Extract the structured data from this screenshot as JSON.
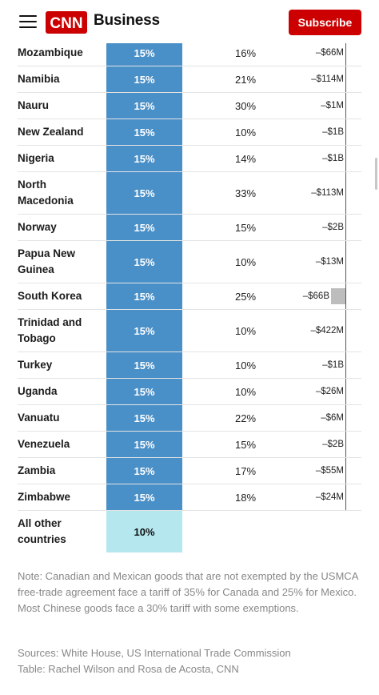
{
  "header": {
    "logo_text": "CNN",
    "section": "Business",
    "subscribe_label": "Subscribe",
    "colors": {
      "brand_red": "#cc0000",
      "rate_bar": "#4a90c8",
      "rate_other": "#b5e7ef"
    }
  },
  "table": {
    "rows": [
      {
        "country": "Mozambique",
        "rate": "15%",
        "prev": "16%",
        "trade": "–$66M"
      },
      {
        "country": "Namibia",
        "rate": "15%",
        "prev": "21%",
        "trade": "–$114M"
      },
      {
        "country": "Nauru",
        "rate": "15%",
        "prev": "30%",
        "trade": "–$1M"
      },
      {
        "country": "New Zealand",
        "rate": "15%",
        "prev": "10%",
        "trade": "–$1B"
      },
      {
        "country": "Nigeria",
        "rate": "15%",
        "prev": "14%",
        "trade": "–$1B"
      },
      {
        "country": "North Macedonia",
        "rate": "15%",
        "prev": "33%",
        "trade": "–$113M"
      },
      {
        "country": "Norway",
        "rate": "15%",
        "prev": "15%",
        "trade": "–$2B"
      },
      {
        "country": "Papua New Guinea",
        "rate": "15%",
        "prev": "10%",
        "trade": "–$13M"
      },
      {
        "country": "South Korea",
        "rate": "15%",
        "prev": "25%",
        "trade": "–$66B"
      },
      {
        "country": "Trinidad and Tobago",
        "rate": "15%",
        "prev": "10%",
        "trade": "–$422M"
      },
      {
        "country": "Turkey",
        "rate": "15%",
        "prev": "10%",
        "trade": "–$1B"
      },
      {
        "country": "Uganda",
        "rate": "15%",
        "prev": "10%",
        "trade": "–$26M"
      },
      {
        "country": "Vanuatu",
        "rate": "15%",
        "prev": "22%",
        "trade": "–$6M"
      },
      {
        "country": "Venezuela",
        "rate": "15%",
        "prev": "15%",
        "trade": "–$2B"
      },
      {
        "country": "Zambia",
        "rate": "15%",
        "prev": "17%",
        "trade": "–$55M"
      },
      {
        "country": "Zimbabwe",
        "rate": "15%",
        "prev": "18%",
        "trade": "–$24M"
      }
    ],
    "other": {
      "country": "All other countries",
      "rate": "10%"
    }
  },
  "note": "Note: Canadian and Mexican goods that are not exempted by the USMCA free-trade agreement face a tariff of 35% for Canada and 25% for Mexico. Most Chinese goods face a 30% tariff with some exemptions.",
  "sources": "Sources: White House, US International Trade Commission",
  "credit": "Table: Rachel Wilson and Rosa de Acosta, CNN"
}
